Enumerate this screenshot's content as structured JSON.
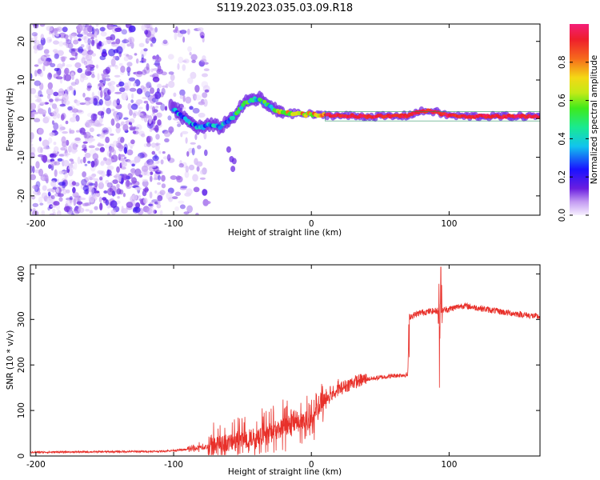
{
  "figure_title": "S119.2023.035.03.09.R18",
  "chart_data": [
    {
      "type": "heatmap",
      "name": "spectrogram",
      "title": "S119.2023.035.03.09.R18",
      "xlabel": "Height of straight line (km)",
      "ylabel": "Frequency (Hz)",
      "xlim": [
        -204,
        166
      ],
      "ylim": [
        -25,
        24.5
      ],
      "xticks": [
        -200,
        -100,
        0,
        100
      ],
      "yticks": [
        -20,
        -10,
        0,
        10,
        20
      ],
      "signal_track": {
        "x": [
          -102,
          -98,
          -94,
          -90,
          -86,
          -82,
          -78,
          -74,
          -70,
          -66,
          -62,
          -58,
          -54,
          -50,
          -46,
          -42,
          -38,
          -34,
          -30,
          -26,
          -22,
          -18,
          -14,
          -10,
          -5,
          0,
          5,
          10,
          20,
          40,
          60,
          70,
          75,
          80,
          85,
          90,
          95,
          100,
          110,
          130,
          166
        ],
        "freq": [
          3,
          2,
          0.5,
          -0.5,
          -1.5,
          -2.2,
          -2.2,
          -1.6,
          -2.0,
          -2.2,
          -1.0,
          0.0,
          1.5,
          3.5,
          4.5,
          5.0,
          5.2,
          4.2,
          3.0,
          2.2,
          1.8,
          1.5,
          1.2,
          1.5,
          1.0,
          1.2,
          0.8,
          1.0,
          0.8,
          0.6,
          0.6,
          0.8,
          1.5,
          1.8,
          2.0,
          1.8,
          1.2,
          0.8,
          0.6,
          0.6,
          0.6
        ]
      },
      "colorbar": {
        "label": "Normalized spectral amplitude",
        "range": [
          0,
          1
        ],
        "ticks": [
          0.0,
          0.2,
          0.4,
          0.6,
          0.8
        ],
        "tick_labels": [
          "0.0",
          "0.2",
          "0.4",
          "0.6",
          "0.8"
        ]
      }
    },
    {
      "type": "line",
      "name": "snr",
      "xlabel": "Height of straight line (km)",
      "ylabel": "SNR (10 * v/v)",
      "xlim": [
        -204,
        166
      ],
      "ylim": [
        0,
        420
      ],
      "xticks": [
        -200,
        -100,
        0,
        100
      ],
      "yticks": [
        0,
        100,
        200,
        300,
        400
      ],
      "color": "#e8302a",
      "trend": {
        "x": [
          -204,
          -110,
          -90,
          -70,
          -55,
          -40,
          -30,
          -20,
          -10,
          0,
          5,
          10,
          20,
          30,
          40,
          50,
          60,
          70,
          71,
          80,
          90,
          100,
          110,
          120,
          140,
          166
        ],
        "y": [
          8,
          10,
          14,
          22,
          30,
          40,
          50,
          60,
          70,
          80,
          100,
          120,
          145,
          160,
          168,
          172,
          176,
          178,
          305,
          315,
          318,
          322,
          330,
          325,
          315,
          305
        ]
      },
      "spikes": [
        {
          "x": 94,
          "y": 415
        },
        {
          "x": 93,
          "y": 150
        }
      ]
    }
  ]
}
